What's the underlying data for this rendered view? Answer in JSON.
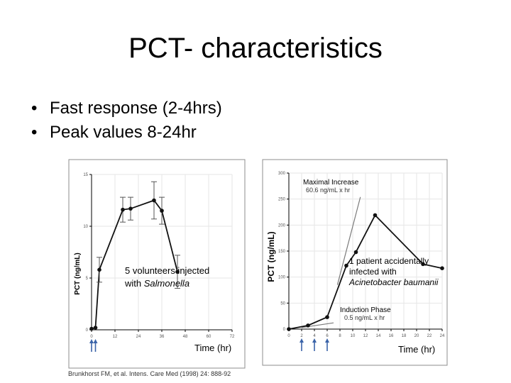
{
  "slide": {
    "title": "PCT- characteristics",
    "bullets": [
      "Fast response (2-4hrs)",
      "Peak values 8-24hr"
    ],
    "citation": "Brunkhorst FM, et al. Intens. Care Med (1998) 24: 888-92"
  },
  "chart_data": [
    {
      "type": "line",
      "xlabel": "Time (hr)",
      "ylabel": "PCT (ng/mL)",
      "xlim": [
        0,
        72
      ],
      "ylim": [
        0,
        15
      ],
      "x_ticks": [
        "0",
        "12",
        "24",
        "36",
        "48",
        "60",
        "72"
      ],
      "y_ticks": [
        "0",
        "5",
        "10",
        "15"
      ],
      "annotation": [
        "5 volunteers injected",
        "with ",
        "Salmonella"
      ],
      "arrows_at_x": [
        0,
        2
      ],
      "series": [
        {
          "x": [
            0,
            2,
            4,
            16,
            20,
            32,
            36,
            44
          ],
          "y": [
            0.1,
            0.2,
            5.8,
            11.6,
            11.7,
            12.5,
            11.5,
            5.6
          ],
          "error": [
            0,
            0,
            1.2,
            1.2,
            1.1,
            1.8,
            1.3,
            1.6
          ]
        }
      ],
      "colors": {
        "line": "#111111",
        "frame": "#8c8c8c"
      }
    },
    {
      "type": "line",
      "xlabel": "Time (hr)",
      "ylabel": "PCT (ng/mL)",
      "xlim": [
        0,
        24
      ],
      "ylim": [
        0,
        300
      ],
      "x_ticks": [
        "0",
        "2",
        "4",
        "6",
        "8",
        "10",
        "12",
        "14",
        "16",
        "18",
        "20",
        "22",
        "24"
      ],
      "y_ticks": [
        "0",
        "50",
        "100",
        "150",
        "200",
        "250",
        "300"
      ],
      "annotations": {
        "maximal_increase": [
          "Maximal Increase",
          "60.6 ng/mL x hr"
        ],
        "patient_note": [
          "1 patient accidentally",
          "infected with",
          "Acinetobacter baumanii"
        ],
        "induction_phase": [
          "Induction Phase",
          "0.5 ng/mL x hr"
        ]
      },
      "arrows_at_x": [
        2,
        4,
        6
      ],
      "series": [
        {
          "x": [
            0,
            3,
            6,
            9,
            10.5,
            13.5,
            21,
            24
          ],
          "y": [
            0,
            7,
            23,
            122,
            148,
            219,
            125,
            117
          ]
        }
      ],
      "colors": {
        "line": "#111111",
        "arrow": "#3a63a8",
        "tangent": "#7a7a7a"
      }
    }
  ]
}
